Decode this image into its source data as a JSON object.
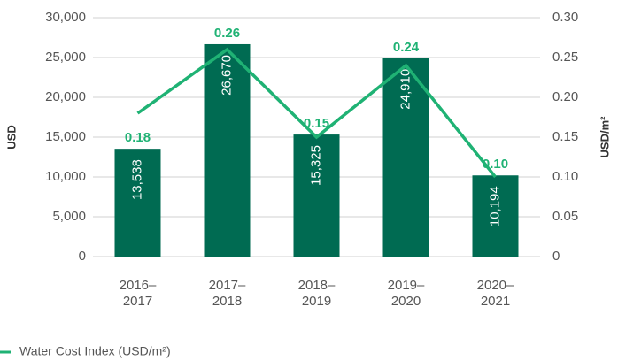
{
  "chart_data": {
    "type": "bar_line",
    "categories": [
      "2016–2017",
      "2017–2018",
      "2018–2019",
      "2019–2020",
      "2020–2021"
    ],
    "series": [
      {
        "type": "bar",
        "color": "#006b52",
        "values": [
          13538,
          26670,
          15325,
          24910,
          10194
        ],
        "value_labels": [
          "13,538",
          "26,670",
          "15,325",
          "24,910",
          "10,194"
        ]
      },
      {
        "type": "line",
        "name": "Water Cost Index (USD/m²)",
        "color": "#1fb274",
        "axis": "y2",
        "values": [
          0.18,
          0.26,
          0.15,
          0.24,
          0.1
        ],
        "value_labels": [
          "0.18",
          "0.26",
          "0.15",
          "0.24",
          "0.10"
        ]
      }
    ],
    "ylabel": "USD",
    "y2label": "USD/m²",
    "ylim": [
      0,
      30000
    ],
    "yticks": [
      0,
      {
        "value": 5000,
        "label": "5,000"
      },
      {
        "value": 10000,
        "label": "10,000"
      },
      {
        "value": 15000,
        "label": "15,000"
      },
      {
        "value": 20000,
        "label": "20,000"
      },
      {
        "value": 25000,
        "label": "25,000"
      },
      {
        "value": 30000,
        "label": "30,000"
      }
    ],
    "y2lim": [
      0,
      0.3
    ],
    "y2ticks": [
      0,
      0.05,
      {
        "value": 0.1,
        "label": "0.10"
      },
      0.15,
      {
        "value": 0.2,
        "label": "0.20"
      },
      0.25,
      {
        "value": 0.3,
        "label": "0.30"
      }
    ],
    "grid": true,
    "legend": "bottom-left"
  }
}
